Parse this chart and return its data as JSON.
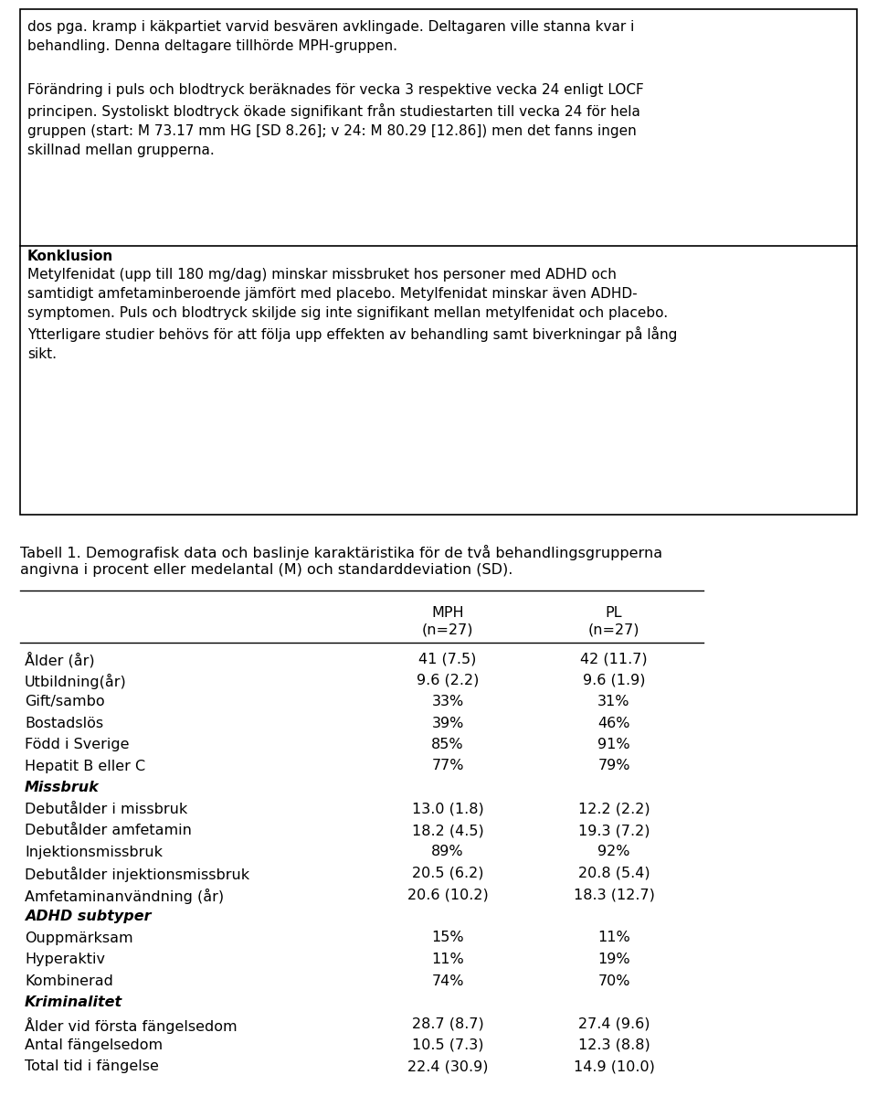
{
  "box1_text": "dos pga. kramp i käkpartiet varvid besvären avklingade. Deltagaren ville stanna kvar i\nbehandling. Denna deltagare tillhörde MPH-gruppen.",
  "box2_text": "Förändring i puls och blodtryck beräknades för vecka 3 respektive vecka 24 enligt LOCF\nprincipen. Systoliskt blodtryck ökade signifikant från studiestarten till vecka 24 för hela\ngruppen (start: M 73.17 mm HG [SD 8.26]; v 24: M 80.29 [12.86]) men det fanns ingen\nskillnad mellan grupperna.",
  "box3_bold": "Konklusion",
  "box3_text": "Metylfenidat (upp till 180 mg/dag) minskar missbruket hos personer med ADHD och\nsamtidigt amfetaminberoende jämfört med placebo. Metylfenidat minskar även ADHD-\nsymptomen. Puls och blodtryck skiljde sig inte signifikant mellan metylfenidat och placebo.\nYtterligare studier behövs för att följa upp effekten av behandling samt biverkningar på lång\nsikt.",
  "caption_line1": "Tabell 1. Demografisk data och baslinje karaktäristika för de två behandlingsgrupperna",
  "caption_line2": "angivna i procent eller medelantal (M) och standarddeviation (SD).",
  "rows": [
    [
      "Ålder (år)",
      "41 (7.5)",
      "42 (11.7)",
      "normal"
    ],
    [
      "Utbildning(år)",
      "9.6 (2.2)",
      "9.6 (1.9)",
      "normal"
    ],
    [
      "Gift/sambo",
      "33%",
      "31%",
      "normal"
    ],
    [
      "Bostadslös",
      "39%",
      "46%",
      "normal"
    ],
    [
      "Född i Sverige",
      "85%",
      "91%",
      "normal"
    ],
    [
      "Hepatit B eller C",
      "77%",
      "79%",
      "normal"
    ],
    [
      "Missbruk",
      "",
      "",
      "bold_italic"
    ],
    [
      "Debutålder i missbruk",
      "13.0 (1.8)",
      "12.2 (2.2)",
      "normal"
    ],
    [
      "Debutålder amfetamin",
      "18.2 (4.5)",
      "19.3 (7.2)",
      "normal"
    ],
    [
      "Injektionsmissbruk",
      "89%",
      "92%",
      "normal"
    ],
    [
      "Debutålder injektionsmissbruk",
      "20.5 (6.2)",
      "20.8 (5.4)",
      "normal"
    ],
    [
      "Amfetaminanvändning (år)",
      "20.6 (10.2)",
      "18.3 (12.7)",
      "normal"
    ],
    [
      "ADHD subtyper",
      "",
      "",
      "bold_italic"
    ],
    [
      "Ouppmärksam",
      "15%",
      "11%",
      "normal"
    ],
    [
      "Hyperaktiv",
      "11%",
      "19%",
      "normal"
    ],
    [
      "Kombinerad",
      "74%",
      "70%",
      "normal"
    ],
    [
      "Kriminalitet",
      "",
      "",
      "bold_italic"
    ],
    [
      "Ålder vid första fängelsedom",
      "28.7 (8.7)",
      "27.4 (9.6)",
      "normal"
    ],
    [
      "Antal fängelsedom",
      "10.5 (7.3)",
      "12.3 (8.8)",
      "normal"
    ],
    [
      "Total tid i fängelse",
      "22.4 (30.9)",
      "14.9 (10.0)",
      "normal"
    ]
  ],
  "bg_color": "#ffffff",
  "text_color": "#000000",
  "border_color": "#000000",
  "font_size": 11.0,
  "caption_font_size": 11.5,
  "table_font_size": 11.5
}
